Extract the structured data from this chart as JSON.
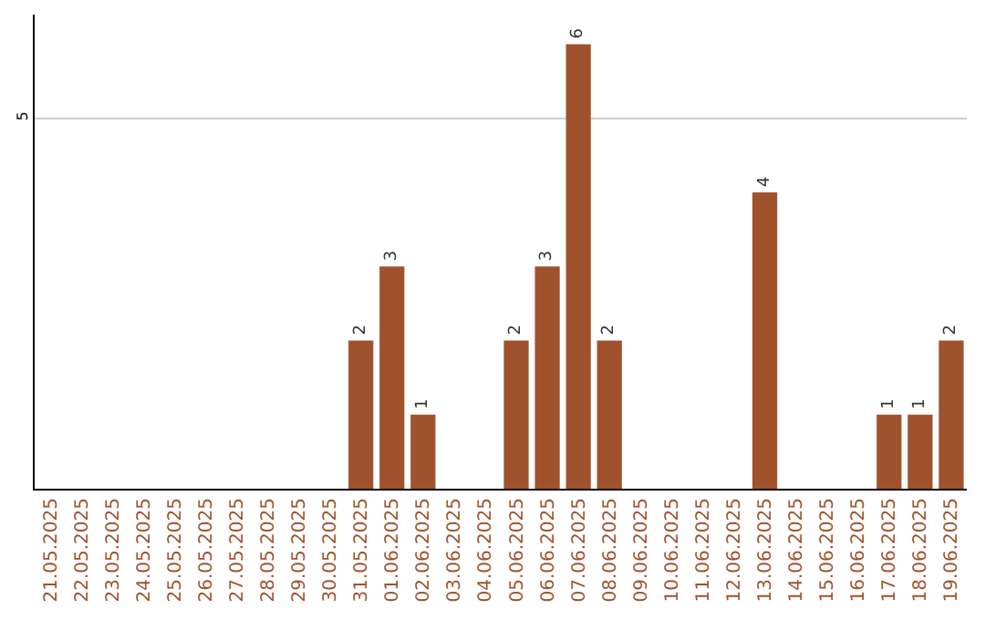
{
  "chart_data": {
    "type": "bar",
    "categories": [
      "21.05.2025",
      "22.05.2025",
      "23.05.2025",
      "24.05.2025",
      "25.05.2025",
      "26.05.2025",
      "27.05.2025",
      "28.05.2025",
      "29.05.2025",
      "30.05.2025",
      "31.05.2025",
      "01.06.2025",
      "02.06.2025",
      "03.06.2025",
      "04.06.2025",
      "05.06.2025",
      "06.06.2025",
      "07.06.2025",
      "08.06.2025",
      "09.06.2025",
      "10.06.2025",
      "11.06.2025",
      "12.06.2025",
      "13.06.2025",
      "14.06.2025",
      "15.06.2025",
      "16.06.2025",
      "17.06.2025",
      "18.06.2025",
      "19.06.2025"
    ],
    "values": [
      0,
      0,
      0,
      0,
      0,
      0,
      0,
      0,
      0,
      0,
      2,
      3,
      1,
      0,
      0,
      2,
      3,
      6,
      2,
      0,
      0,
      0,
      0,
      4,
      0,
      0,
      0,
      1,
      1,
      2
    ],
    "value_labels": [
      null,
      null,
      null,
      null,
      null,
      null,
      null,
      null,
      null,
      null,
      "2",
      "3",
      "1",
      null,
      null,
      "2",
      "3",
      "6",
      "2",
      null,
      null,
      null,
      null,
      "4",
      null,
      null,
      null,
      "1",
      "1",
      "2"
    ],
    "color": "#a0522d",
    "ylim": [
      0,
      6.4
    ],
    "yticks": [
      5
    ],
    "grid": "y",
    "legend": false
  }
}
